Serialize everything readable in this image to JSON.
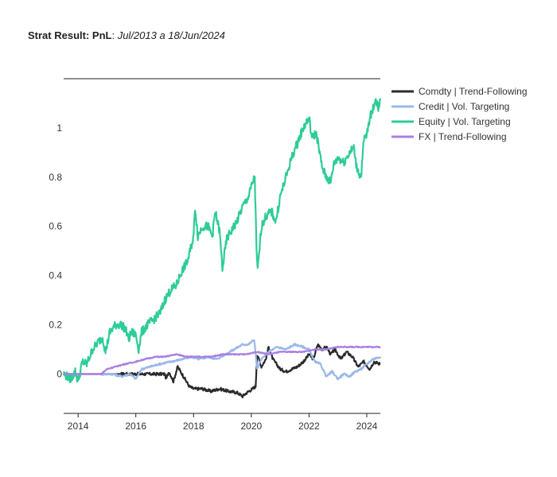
{
  "chart_data": {
    "type": "line",
    "title": "Strat Result: PnL",
    "subtitle": "Jul/2013 a 18/Jun/2024",
    "xlabel": "",
    "ylabel": "",
    "xlim": [
      2013.5,
      2024.47
    ],
    "ylim": [
      -0.16,
      1.2
    ],
    "x_ticks": [
      2014,
      2016,
      2018,
      2020,
      2022,
      2024
    ],
    "y_ticks": [
      0,
      0.2,
      0.4,
      0.6,
      0.8,
      1
    ],
    "grid": false,
    "legend_position": "right",
    "series": [
      {
        "name": "Comdty | Trend-Following",
        "color": "#2b2b2b",
        "points": [
          [
            2013.5,
            0
          ],
          [
            2014.5,
            0
          ],
          [
            2015.5,
            0
          ],
          [
            2016.5,
            0
          ],
          [
            2017.0,
            0
          ],
          [
            2017.05,
            -0.02
          ],
          [
            2017.15,
            0.01
          ],
          [
            2017.3,
            -0.03
          ],
          [
            2017.45,
            0.03
          ],
          [
            2017.55,
            0.01
          ],
          [
            2017.7,
            -0.02
          ],
          [
            2017.85,
            -0.05
          ],
          [
            2018.0,
            -0.06
          ],
          [
            2018.3,
            -0.06
          ],
          [
            2018.6,
            -0.07
          ],
          [
            2018.9,
            -0.06
          ],
          [
            2019.2,
            -0.07
          ],
          [
            2019.5,
            -0.075
          ],
          [
            2019.7,
            -0.09
          ],
          [
            2019.85,
            -0.075
          ],
          [
            2020.05,
            -0.06
          ],
          [
            2020.15,
            -0.05
          ],
          [
            2020.2,
            0.08
          ],
          [
            2020.35,
            0.03
          ],
          [
            2020.5,
            0.06
          ],
          [
            2020.6,
            0.11
          ],
          [
            2020.75,
            0.06
          ],
          [
            2021.0,
            0.02
          ],
          [
            2021.2,
            0.01
          ],
          [
            2021.4,
            0.02
          ],
          [
            2021.6,
            0.03
          ],
          [
            2021.8,
            0.05
          ],
          [
            2022.0,
            0.08
          ],
          [
            2022.15,
            0.06
          ],
          [
            2022.3,
            0.12
          ],
          [
            2022.45,
            0.1
          ],
          [
            2022.6,
            0.11
          ],
          [
            2022.75,
            0.08
          ],
          [
            2022.9,
            0.1
          ],
          [
            2023.1,
            0.06
          ],
          [
            2023.3,
            0.09
          ],
          [
            2023.5,
            0.07
          ],
          [
            2023.7,
            0.03
          ],
          [
            2023.9,
            0.05
          ],
          [
            2024.1,
            0.02
          ],
          [
            2024.25,
            0.05
          ],
          [
            2024.47,
            0.04
          ]
        ]
      },
      {
        "name": "Credit | Vol. Targeting",
        "color": "#9ab8ea",
        "points": [
          [
            2013.5,
            0
          ],
          [
            2014.5,
            0
          ],
          [
            2014.8,
            0.0
          ],
          [
            2015.2,
            0.0
          ],
          [
            2015.5,
            -0.01
          ],
          [
            2015.8,
            0.0
          ],
          [
            2016.0,
            -0.02
          ],
          [
            2016.2,
            0.02
          ],
          [
            2016.5,
            0.03
          ],
          [
            2016.8,
            0.04
          ],
          [
            2017.2,
            0.05
          ],
          [
            2017.6,
            0.06
          ],
          [
            2017.9,
            0.07
          ],
          [
            2018.2,
            0.06
          ],
          [
            2018.5,
            0.07
          ],
          [
            2018.8,
            0.06
          ],
          [
            2019.1,
            0.08
          ],
          [
            2019.4,
            0.1
          ],
          [
            2019.7,
            0.12
          ],
          [
            2019.9,
            0.12
          ],
          [
            2020.1,
            0.14
          ],
          [
            2020.2,
            0.02
          ],
          [
            2020.35,
            0.06
          ],
          [
            2020.6,
            0.09
          ],
          [
            2020.9,
            0.11
          ],
          [
            2021.2,
            0.1
          ],
          [
            2021.5,
            0.12
          ],
          [
            2021.8,
            0.11
          ],
          [
            2022.0,
            0.1
          ],
          [
            2022.2,
            0.05
          ],
          [
            2022.4,
            0.04
          ],
          [
            2022.6,
            -0.01
          ],
          [
            2022.8,
            0.01
          ],
          [
            2023.0,
            -0.02
          ],
          [
            2023.2,
            0.0
          ],
          [
            2023.4,
            -0.01
          ],
          [
            2023.6,
            0.01
          ],
          [
            2023.8,
            0.02
          ],
          [
            2024.0,
            0.04
          ],
          [
            2024.2,
            0.06
          ],
          [
            2024.47,
            0.07
          ]
        ]
      },
      {
        "name": "Equity | Vol. Targeting",
        "color": "#2ecc98",
        "points": [
          [
            2013.5,
            0
          ],
          [
            2013.75,
            -0.02
          ],
          [
            2013.9,
            0.01
          ],
          [
            2014.0,
            -0.03
          ],
          [
            2014.15,
            0.05
          ],
          [
            2014.3,
            0.04
          ],
          [
            2014.5,
            0.1
          ],
          [
            2014.7,
            0.13
          ],
          [
            2014.85,
            0.15
          ],
          [
            2014.95,
            0.09
          ],
          [
            2015.1,
            0.17
          ],
          [
            2015.3,
            0.2
          ],
          [
            2015.5,
            0.2
          ],
          [
            2015.65,
            0.18
          ],
          [
            2015.75,
            0.14
          ],
          [
            2015.85,
            0.17
          ],
          [
            2016.0,
            0.16
          ],
          [
            2016.1,
            0.1
          ],
          [
            2016.2,
            0.17
          ],
          [
            2016.4,
            0.2
          ],
          [
            2016.6,
            0.22
          ],
          [
            2016.85,
            0.25
          ],
          [
            2017.0,
            0.3
          ],
          [
            2017.2,
            0.34
          ],
          [
            2017.4,
            0.36
          ],
          [
            2017.6,
            0.42
          ],
          [
            2017.8,
            0.46
          ],
          [
            2018.0,
            0.56
          ],
          [
            2018.05,
            0.68
          ],
          [
            2018.15,
            0.56
          ],
          [
            2018.3,
            0.6
          ],
          [
            2018.5,
            0.6
          ],
          [
            2018.65,
            0.56
          ],
          [
            2018.75,
            0.66
          ],
          [
            2018.9,
            0.58
          ],
          [
            2019.0,
            0.43
          ],
          [
            2019.15,
            0.55
          ],
          [
            2019.3,
            0.58
          ],
          [
            2019.5,
            0.62
          ],
          [
            2019.7,
            0.68
          ],
          [
            2019.9,
            0.72
          ],
          [
            2020.05,
            0.78
          ],
          [
            2020.12,
            0.8
          ],
          [
            2020.18,
            0.5
          ],
          [
            2020.22,
            0.42
          ],
          [
            2020.35,
            0.6
          ],
          [
            2020.5,
            0.64
          ],
          [
            2020.7,
            0.66
          ],
          [
            2020.85,
            0.62
          ],
          [
            2021.0,
            0.72
          ],
          [
            2021.2,
            0.8
          ],
          [
            2021.4,
            0.88
          ],
          [
            2021.6,
            0.94
          ],
          [
            2021.8,
            1.0
          ],
          [
            2022.0,
            1.04
          ],
          [
            2022.1,
            0.96
          ],
          [
            2022.25,
            0.98
          ],
          [
            2022.45,
            0.84
          ],
          [
            2022.6,
            0.8
          ],
          [
            2022.75,
            0.78
          ],
          [
            2022.85,
            0.85
          ],
          [
            2023.0,
            0.88
          ],
          [
            2023.2,
            0.86
          ],
          [
            2023.4,
            0.9
          ],
          [
            2023.55,
            0.92
          ],
          [
            2023.65,
            0.84
          ],
          [
            2023.8,
            0.8
          ],
          [
            2023.9,
            0.95
          ],
          [
            2024.0,
            0.97
          ],
          [
            2024.1,
            1.04
          ],
          [
            2024.2,
            1.07
          ],
          [
            2024.3,
            1.12
          ],
          [
            2024.4,
            1.08
          ],
          [
            2024.47,
            1.12
          ]
        ]
      },
      {
        "name": "FX | Trend-Following",
        "color": "#a97fe3",
        "points": [
          [
            2013.5,
            0
          ],
          [
            2014.5,
            0
          ],
          [
            2014.8,
            0.0
          ],
          [
            2015.0,
            0.02
          ],
          [
            2015.3,
            0.03
          ],
          [
            2015.6,
            0.04
          ],
          [
            2016.0,
            0.05
          ],
          [
            2016.3,
            0.06
          ],
          [
            2016.7,
            0.07
          ],
          [
            2017.0,
            0.07
          ],
          [
            2017.4,
            0.08
          ],
          [
            2017.8,
            0.07
          ],
          [
            2018.2,
            0.07
          ],
          [
            2018.6,
            0.07
          ],
          [
            2019.0,
            0.08
          ],
          [
            2019.4,
            0.08
          ],
          [
            2019.8,
            0.08
          ],
          [
            2020.2,
            0.09
          ],
          [
            2020.6,
            0.08
          ],
          [
            2021.0,
            0.09
          ],
          [
            2021.4,
            0.09
          ],
          [
            2021.8,
            0.09
          ],
          [
            2022.2,
            0.1
          ],
          [
            2022.6,
            0.1
          ],
          [
            2023.0,
            0.11
          ],
          [
            2023.4,
            0.11
          ],
          [
            2023.8,
            0.11
          ],
          [
            2024.2,
            0.11
          ],
          [
            2024.47,
            0.11
          ]
        ]
      }
    ]
  }
}
